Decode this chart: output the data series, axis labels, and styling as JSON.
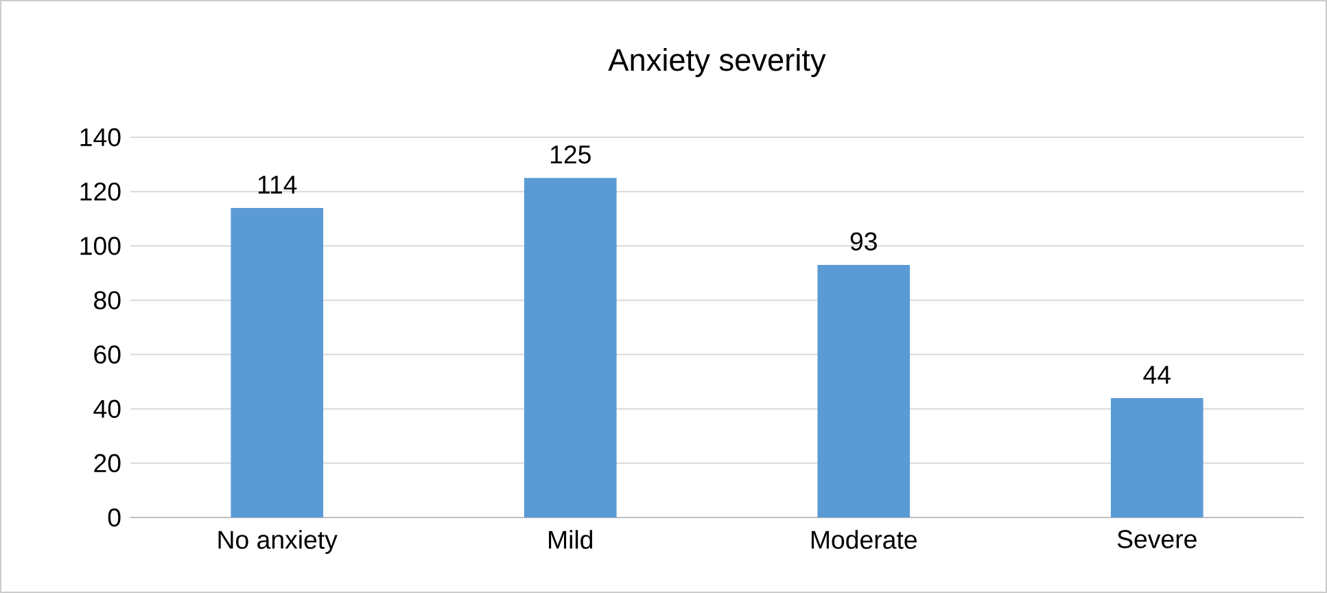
{
  "chart_data": {
    "type": "bar",
    "title": "Anxiety severity",
    "categories": [
      "No anxiety",
      "Mild",
      "Moderate",
      "Severe"
    ],
    "values": [
      114,
      125,
      93,
      44
    ],
    "color": "#5b9bd5",
    "ylim": [
      0,
      140
    ],
    "yticks": [
      0,
      20,
      40,
      60,
      80,
      100,
      120,
      140
    ],
    "grid": "y",
    "data_labels": true
  }
}
